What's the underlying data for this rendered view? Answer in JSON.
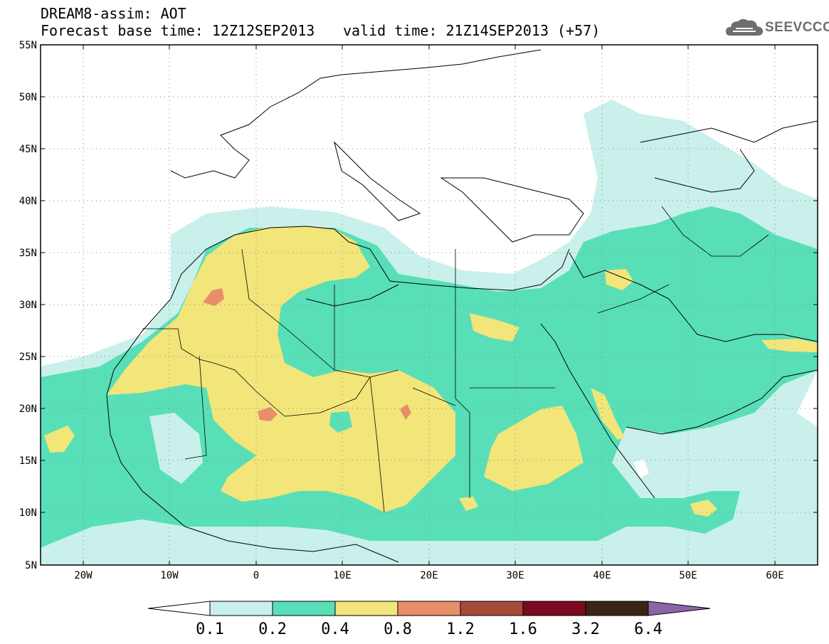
{
  "header": {
    "line1": "DREAM8-assim: AOT",
    "line2": "Forecast base time: 12Z12SEP2013",
    "valid": "valid time: 21Z14SEP2013 (+57)"
  },
  "logo": {
    "text": "SEEVCCC",
    "icon": "cloud-icon"
  },
  "map": {
    "lat_labels": [
      "55N",
      "50N",
      "45N",
      "40N",
      "35N",
      "30N",
      "25N",
      "20N",
      "15N",
      "10N",
      "5N"
    ],
    "lon_labels": [
      "20W",
      "10W",
      "0",
      "10E",
      "20E",
      "30E",
      "40E",
      "50E",
      "60E"
    ]
  },
  "colorbar": {
    "labels": [
      "0.1",
      "0.2",
      "0.4",
      "0.8",
      "1.2",
      "1.6",
      "3.2",
      "6.4"
    ],
    "colors": [
      "#c9f0ea",
      "#58dfb7",
      "#f2e57a",
      "#e88e6a",
      "#a64a38",
      "#7a0a20",
      "#3c2414",
      "#8e64a8"
    ],
    "under_color": "#ffffff"
  }
}
